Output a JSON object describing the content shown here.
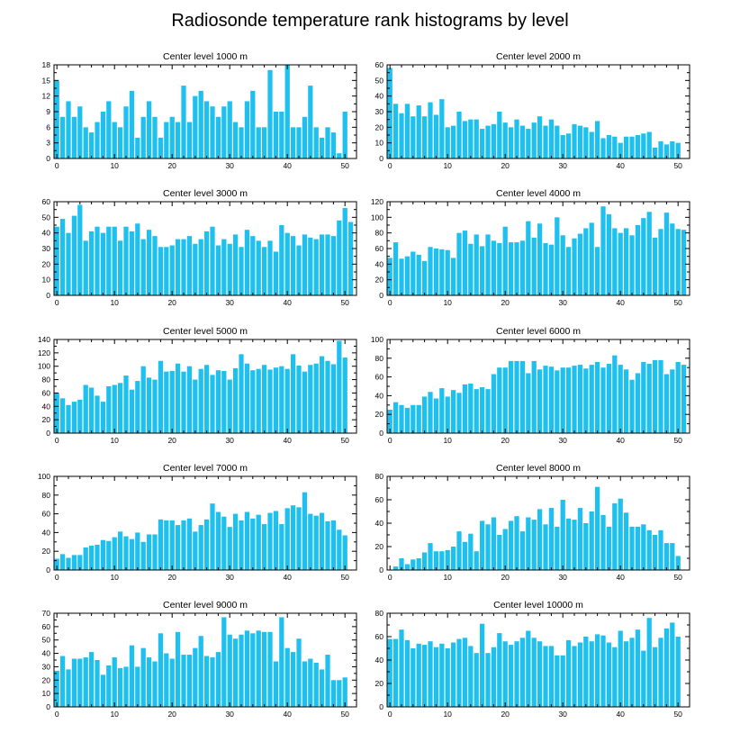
{
  "chart_data": {
    "title": "Radiosonde temperature rank histograms by level",
    "type": "bar",
    "colors": {
      "bar": "#1ec0f0",
      "axis": "#000000"
    },
    "panels": [
      {
        "title": "Center level 1000 m",
        "xlim": [
          -0.5,
          52
        ],
        "ylim": [
          0,
          18
        ],
        "xticks": [
          0,
          10,
          20,
          30,
          40,
          50
        ],
        "yticks": [
          0,
          3,
          6,
          9,
          12,
          15,
          18
        ],
        "values": [
          15,
          8,
          11,
          8,
          10,
          6,
          5,
          7,
          9,
          11,
          7,
          6,
          10,
          13,
          4,
          8,
          11,
          8,
          4,
          7,
          8,
          7,
          14,
          7,
          12,
          13,
          11,
          10,
          8,
          10,
          11,
          7,
          6,
          11,
          13,
          6,
          6,
          17,
          9,
          9,
          18,
          6,
          6,
          8,
          14,
          6,
          4,
          6,
          5,
          1,
          9
        ]
      },
      {
        "title": "Center level 2000 m",
        "xlim": [
          -0.5,
          52
        ],
        "ylim": [
          0,
          60
        ],
        "xticks": [
          0,
          10,
          20,
          30,
          40,
          50
        ],
        "yticks": [
          0,
          10,
          20,
          30,
          40,
          50,
          60
        ],
        "values": [
          58,
          35,
          29,
          35,
          27,
          34,
          27,
          36,
          28,
          38,
          20,
          21,
          30,
          24,
          25,
          25,
          19,
          21,
          22,
          30,
          23,
          20,
          25,
          21,
          19,
          23,
          27,
          21,
          25,
          21,
          15,
          16,
          22,
          21,
          20,
          17,
          24,
          13,
          15,
          14,
          10,
          14,
          14,
          15,
          16,
          17,
          7,
          11,
          9,
          11,
          10
        ]
      },
      {
        "title": "Center level 3000 m",
        "xlim": [
          -0.5,
          52
        ],
        "ylim": [
          0,
          60
        ],
        "xticks": [
          0,
          10,
          20,
          30,
          40,
          50
        ],
        "yticks": [
          0,
          10,
          20,
          30,
          40,
          50,
          60
        ],
        "values": [
          44,
          49,
          40,
          51,
          58,
          35,
          41,
          44,
          40,
          44,
          44,
          35,
          44,
          41,
          46,
          36,
          42,
          38,
          31,
          31,
          32,
          36,
          36,
          38,
          33,
          36,
          41,
          44,
          32,
          36,
          33,
          39,
          31,
          42,
          38,
          35,
          31,
          35,
          28,
          45,
          40,
          38,
          32,
          39,
          37,
          36,
          39,
          39,
          38,
          48,
          56,
          47
        ]
      },
      {
        "title": "Center level 4000 m",
        "xlim": [
          -0.5,
          52
        ],
        "ylim": [
          0,
          120
        ],
        "xticks": [
          0,
          10,
          20,
          30,
          40,
          50
        ],
        "yticks": [
          0,
          20,
          40,
          60,
          80,
          100,
          120
        ],
        "values": [
          48,
          68,
          47,
          50,
          56,
          52,
          44,
          62,
          60,
          59,
          58,
          48,
          80,
          83,
          66,
          78,
          63,
          78,
          70,
          67,
          88,
          68,
          68,
          70,
          95,
          74,
          92,
          67,
          65,
          100,
          77,
          62,
          73,
          79,
          86,
          93,
          62,
          114,
          104,
          86,
          80,
          86,
          77,
          90,
          99,
          107,
          74,
          85,
          106,
          92,
          85,
          84
        ]
      },
      {
        "title": "Center level 5000 m",
        "xlim": [
          -0.5,
          52
        ],
        "ylim": [
          0,
          140
        ],
        "xticks": [
          0,
          10,
          20,
          30,
          40,
          50
        ],
        "yticks": [
          0,
          20,
          40,
          60,
          80,
          100,
          120,
          140
        ],
        "values": [
          60,
          52,
          42,
          47,
          50,
          72,
          68,
          56,
          47,
          70,
          72,
          75,
          86,
          65,
          78,
          100,
          83,
          80,
          108,
          92,
          93,
          104,
          92,
          100,
          80,
          96,
          102,
          87,
          94,
          93,
          80,
          97,
          118,
          104,
          94,
          96,
          102,
          95,
          98,
          100,
          96,
          118,
          101,
          92,
          102,
          104,
          115,
          108,
          103,
          138,
          113
        ]
      },
      {
        "title": "Center level 6000 m",
        "xlim": [
          -0.5,
          52
        ],
        "ylim": [
          0,
          100
        ],
        "xticks": [
          0,
          10,
          20,
          30,
          40,
          50
        ],
        "yticks": [
          0,
          20,
          40,
          60,
          80,
          100
        ],
        "values": [
          25,
          33,
          30,
          27,
          30,
          30,
          39,
          44,
          37,
          48,
          39,
          46,
          43,
          52,
          53,
          47,
          49,
          47,
          63,
          70,
          70,
          77,
          77,
          77,
          64,
          77,
          68,
          72,
          71,
          67,
          70,
          70,
          72,
          73,
          69,
          73,
          76,
          70,
          74,
          83,
          73,
          68,
          57,
          64,
          76,
          74,
          78,
          78,
          63,
          68,
          76,
          73
        ]
      },
      {
        "title": "Center level 7000 m",
        "xlim": [
          -0.5,
          52
        ],
        "ylim": [
          0,
          100
        ],
        "xticks": [
          0,
          10,
          20,
          30,
          40,
          50
        ],
        "yticks": [
          0,
          20,
          40,
          60,
          80,
          100
        ],
        "values": [
          12,
          17,
          13,
          16,
          16,
          24,
          26,
          27,
          32,
          31,
          35,
          41,
          36,
          33,
          40,
          30,
          38,
          38,
          54,
          53,
          53,
          48,
          53,
          55,
          41,
          48,
          54,
          71,
          62,
          57,
          46,
          60,
          53,
          62,
          55,
          59,
          49,
          61,
          63,
          49,
          66,
          69,
          67,
          83,
          60,
          58,
          61,
          52,
          53,
          43,
          37
        ]
      },
      {
        "title": "Center level 8000 m",
        "xlim": [
          -0.5,
          52
        ],
        "ylim": [
          0,
          80
        ],
        "xticks": [
          0,
          10,
          20,
          30,
          40,
          50
        ],
        "yticks": [
          0,
          20,
          40,
          60,
          80
        ],
        "values": [
          0,
          3,
          10,
          5,
          9,
          10,
          15,
          23,
          16,
          16,
          17,
          20,
          33,
          24,
          31,
          16,
          42,
          39,
          45,
          30,
          35,
          42,
          46,
          33,
          45,
          43,
          52,
          39,
          53,
          37,
          60,
          44,
          43,
          53,
          40,
          50,
          71,
          47,
          37,
          57,
          61,
          49,
          37,
          37,
          39,
          34,
          30,
          34,
          23,
          23,
          12
        ]
      },
      {
        "title": "Center level 9000 m",
        "xlim": [
          -0.5,
          52
        ],
        "ylim": [
          0,
          70
        ],
        "xticks": [
          0,
          10,
          20,
          30,
          40,
          50
        ],
        "yticks": [
          0,
          10,
          20,
          30,
          40,
          50,
          60,
          70
        ],
        "values": [
          27,
          38,
          28,
          36,
          36,
          37,
          41,
          35,
          24,
          31,
          37,
          29,
          30,
          46,
          30,
          44,
          37,
          34,
          55,
          40,
          36,
          56,
          39,
          39,
          44,
          53,
          38,
          37,
          41,
          67,
          54,
          51,
          54,
          57,
          55,
          57,
          56,
          56,
          34,
          67,
          44,
          41,
          51,
          34,
          36,
          33,
          28,
          39,
          20,
          20,
          22
        ]
      },
      {
        "title": "Center level 10000 m",
        "xlim": [
          -0.5,
          52
        ],
        "ylim": [
          0,
          80
        ],
        "xticks": [
          0,
          10,
          20,
          30,
          40,
          50
        ],
        "yticks": [
          0,
          20,
          40,
          60,
          80
        ],
        "values": [
          58,
          58,
          66,
          57,
          50,
          54,
          53,
          56,
          51,
          54,
          50,
          55,
          58,
          59,
          52,
          46,
          71,
          46,
          51,
          63,
          56,
          53,
          56,
          59,
          65,
          59,
          56,
          52,
          52,
          44,
          44,
          57,
          52,
          55,
          60,
          56,
          62,
          61,
          55,
          51,
          65,
          56,
          59,
          66,
          48,
          76,
          51,
          59,
          67,
          72,
          60
        ]
      }
    ]
  }
}
